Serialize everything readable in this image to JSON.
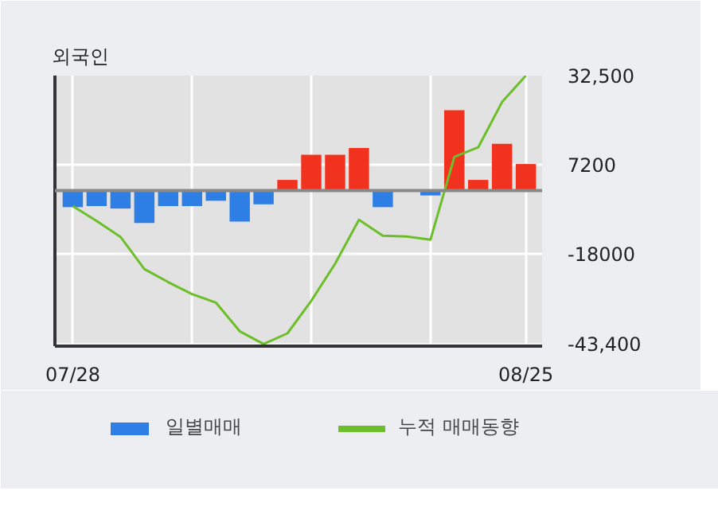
{
  "chart_data": {
    "type": "bar",
    "title": "외국인",
    "categories": [
      "07/28",
      null,
      null,
      null,
      null,
      null,
      null,
      null,
      null,
      null,
      null,
      null,
      null,
      null,
      null,
      null,
      null,
      null,
      null,
      "08/25"
    ],
    "series": [
      {
        "name": "일별매매",
        "colors": [
          "#2d7fe6",
          "#2d7fe6",
          "#2d7fe6",
          "#2d7fe6",
          "#2d7fe6",
          "#2d7fe6",
          "#2d7fe6",
          "#2d7fe6",
          "#2d7fe6",
          "#f0321e",
          "#f0321e",
          "#f0321e",
          "#f0321e",
          "#2d7fe6",
          "#2d7fe6",
          "#2d7fe6",
          "#f0321e",
          "#f0321e",
          "#f0321e",
          "#f0321e"
        ],
        "values": [
          -4700,
          -4400,
          -5100,
          -9200,
          -4400,
          -4400,
          -2900,
          -8800,
          -3900,
          3000,
          10100,
          10100,
          12000,
          -4700,
          0,
          -1400,
          22700,
          3000,
          13200,
          7500
        ]
      },
      {
        "name": "누적 매매동향",
        "type": "line",
        "color": "#6cbf2a",
        "values": [
          -4400,
          -8600,
          -13100,
          -22200,
          -25900,
          -29300,
          -31700,
          -39800,
          -43400,
          -40400,
          -31200,
          -20700,
          -8300,
          -12800,
          -13000,
          -13900,
          9500,
          12200,
          25000,
          32500
        ]
      }
    ],
    "ylim": [
      -44000,
      32500
    ],
    "yticks": [
      {
        "value": 32500,
        "label": "32,500"
      },
      7200,
      -18000,
      {
        "value": -43400,
        "label": "-43,400"
      }
    ],
    "grid": true,
    "legend": "bottom"
  }
}
